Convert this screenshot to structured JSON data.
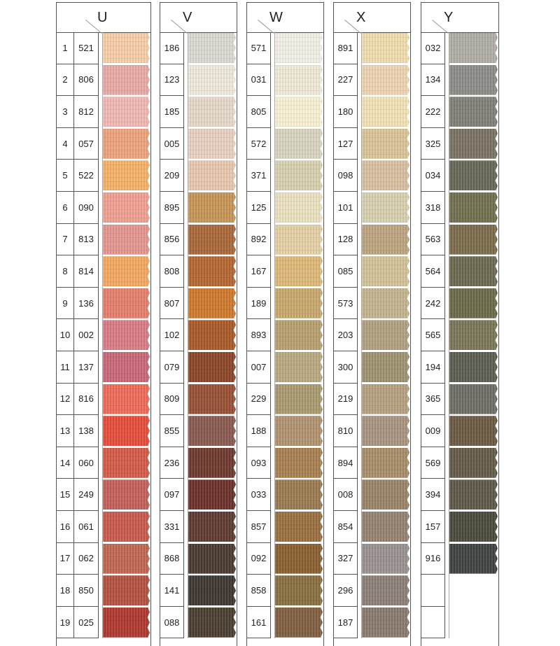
{
  "columns": [
    {
      "letter": "U",
      "numbered": true,
      "items": [
        {
          "n": "1",
          "code": "521",
          "color": "#f7cfa8"
        },
        {
          "n": "2",
          "code": "806",
          "color": "#e9aaa4"
        },
        {
          "n": "3",
          "code": "812",
          "color": "#f2b8b4"
        },
        {
          "n": "4",
          "code": "057",
          "color": "#eea27c"
        },
        {
          "n": "5",
          "code": "522",
          "color": "#f6b168"
        },
        {
          "n": "6",
          "code": "090",
          "color": "#f0a092"
        },
        {
          "n": "7",
          "code": "813",
          "color": "#e49690"
        },
        {
          "n": "8",
          "code": "814",
          "color": "#f5a860"
        },
        {
          "n": "9",
          "code": "136",
          "color": "#e77e6c"
        },
        {
          "n": "10",
          "code": "002",
          "color": "#d97c86"
        },
        {
          "n": "11",
          "code": "137",
          "color": "#c96878"
        },
        {
          "n": "12",
          "code": "816",
          "color": "#ef6a58"
        },
        {
          "n": "13",
          "code": "138",
          "color": "#e84c3a"
        },
        {
          "n": "14",
          "code": "060",
          "color": "#d65a48"
        },
        {
          "n": "15",
          "code": "249",
          "color": "#c4605a"
        },
        {
          "n": "16",
          "code": "061",
          "color": "#c85a4c"
        },
        {
          "n": "17",
          "code": "062",
          "color": "#c06650"
        },
        {
          "n": "18",
          "code": "850",
          "color": "#b45040"
        },
        {
          "n": "19",
          "code": "025",
          "color": "#b03830"
        }
      ]
    },
    {
      "letter": "V",
      "numbered": false,
      "items": [
        {
          "code": "186",
          "color": "#dcd8d2"
        },
        {
          "code": "123",
          "color": "#efe9dc"
        },
        {
          "code": "185",
          "color": "#e5d9c9"
        },
        {
          "code": "005",
          "color": "#ead0c0"
        },
        {
          "code": "209",
          "color": "#e8c8b0"
        },
        {
          "code": "895",
          "color": "#c69556"
        },
        {
          "code": "856",
          "color": "#a8683a"
        },
        {
          "code": "808",
          "color": "#b46530"
        },
        {
          "code": "807",
          "color": "#d0782a"
        },
        {
          "code": "102",
          "color": "#a85a28"
        },
        {
          "code": "079",
          "color": "#8a4628"
        },
        {
          "code": "809",
          "color": "#985036"
        },
        {
          "code": "855",
          "color": "#8a5a50"
        },
        {
          "code": "236",
          "color": "#6e3a2e"
        },
        {
          "code": "097",
          "color": "#6a3028"
        },
        {
          "code": "331",
          "color": "#5e3a30"
        },
        {
          "code": "868",
          "color": "#4a3a30"
        },
        {
          "code": "141",
          "color": "#3e3630"
        },
        {
          "code": "088",
          "color": "#4a3e30"
        }
      ]
    },
    {
      "letter": "W",
      "numbered": false,
      "items": [
        {
          "code": "571",
          "color": "#f2efe5"
        },
        {
          "code": "031",
          "color": "#f0ead8"
        },
        {
          "code": "805",
          "color": "#f8f1d2"
        },
        {
          "code": "572",
          "color": "#d8d4c0"
        },
        {
          "code": "371",
          "color": "#d8d0b0"
        },
        {
          "code": "125",
          "color": "#ebe2c2"
        },
        {
          "code": "892",
          "color": "#e5d0a5"
        },
        {
          "code": "167",
          "color": "#dfb878"
        },
        {
          "code": "189",
          "color": "#c8a86c"
        },
        {
          "code": "893",
          "color": "#b8a070"
        },
        {
          "code": "007",
          "color": "#b8a880"
        },
        {
          "code": "229",
          "color": "#a89a70"
        },
        {
          "code": "188",
          "color": "#b09270"
        },
        {
          "code": "093",
          "color": "#a88050"
        },
        {
          "code": "033",
          "color": "#9a7a50"
        },
        {
          "code": "857",
          "color": "#9a7040"
        },
        {
          "code": "092",
          "color": "#8a6030"
        },
        {
          "code": "858",
          "color": "#8a7040"
        },
        {
          "code": "161",
          "color": "#806040"
        }
      ]
    },
    {
      "letter": "X",
      "numbered": false,
      "items": [
        {
          "code": "891",
          "color": "#f0dcae"
        },
        {
          "code": "227",
          "color": "#edd4b2"
        },
        {
          "code": "180",
          "color": "#f2e2b4"
        },
        {
          "code": "127",
          "color": "#dcc498"
        },
        {
          "code": "098",
          "color": "#d8c0a2"
        },
        {
          "code": "101",
          "color": "#d8d0b0"
        },
        {
          "code": "128",
          "color": "#bca480"
        },
        {
          "code": "085",
          "color": "#d2c298"
        },
        {
          "code": "573",
          "color": "#c4b48e"
        },
        {
          "code": "203",
          "color": "#b0a280"
        },
        {
          "code": "300",
          "color": "#9e9270"
        },
        {
          "code": "219",
          "color": "#b6a080"
        },
        {
          "code": "810",
          "color": "#a89480"
        },
        {
          "code": "894",
          "color": "#a88c68"
        },
        {
          "code": "008",
          "color": "#9a8468"
        },
        {
          "code": "854",
          "color": "#948270"
        },
        {
          "code": "327",
          "color": "#9a9090"
        },
        {
          "code": "296",
          "color": "#8c8078"
        },
        {
          "code": "187",
          "color": "#8a7a6e"
        }
      ]
    },
    {
      "letter": "Y",
      "numbered": false,
      "items": [
        {
          "code": "032",
          "color": "#b0aea6"
        },
        {
          "code": "134",
          "color": "#8c8c88"
        },
        {
          "code": "222",
          "color": "#808078"
        },
        {
          "code": "325",
          "color": "#7a7262"
        },
        {
          "code": "034",
          "color": "#686858"
        },
        {
          "code": "318",
          "color": "#727050"
        },
        {
          "code": "563",
          "color": "#7c6c4c"
        },
        {
          "code": "564",
          "color": "#6c6a50"
        },
        {
          "code": "242",
          "color": "#6c6a48"
        },
        {
          "code": "565",
          "color": "#7a7658"
        },
        {
          "code": "194",
          "color": "#5c5e50"
        },
        {
          "code": "365",
          "color": "#6e6e66"
        },
        {
          "code": "009",
          "color": "#6a5a42"
        },
        {
          "code": "569",
          "color": "#645a48"
        },
        {
          "code": "394",
          "color": "#5e5848"
        },
        {
          "code": "157",
          "color": "#4a4a3c"
        },
        {
          "code": "916",
          "color": "#3e4240"
        },
        {
          "code": "",
          "color": ""
        },
        {
          "code": "",
          "color": ""
        }
      ]
    }
  ]
}
